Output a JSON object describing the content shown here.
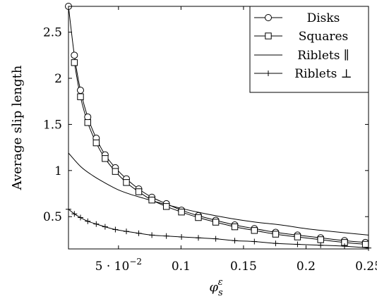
{
  "chart_data": {
    "type": "line",
    "title": "",
    "xlabel": "φ_s^ε",
    "ylabel": "Average slip length",
    "xlim": [
      0.01,
      0.25
    ],
    "ylim": [
      0.15,
      2.78
    ],
    "x_ticks": [
      {
        "value": 0.05,
        "label": "5 · 10",
        "sup": "−2"
      },
      {
        "value": 0.1,
        "label": "0.1"
      },
      {
        "value": 0.15,
        "label": "0.15"
      },
      {
        "value": 0.2,
        "label": "0.2"
      },
      {
        "value": 0.25,
        "label": "0.25"
      }
    ],
    "y_ticks": [
      {
        "value": 0.5,
        "label": "0.5"
      },
      {
        "value": 1,
        "label": "1"
      },
      {
        "value": 1.5,
        "label": "1.5"
      },
      {
        "value": 2,
        "label": "2"
      },
      {
        "value": 2.5,
        "label": "2.5"
      }
    ],
    "legend_position": "top-right",
    "series": [
      {
        "name": "Disks",
        "marker": "circle",
        "x": [
          0.01,
          0.0147,
          0.0196,
          0.0254,
          0.0322,
          0.0393,
          0.0475,
          0.0563,
          0.0662,
          0.0767,
          0.0883,
          0.1004,
          0.1139,
          0.1278,
          0.143,
          0.1587,
          0.1757,
          0.1932,
          0.2117,
          0.2308,
          0.2475
        ],
        "y": [
          2.78,
          2.25,
          1.87,
          1.58,
          1.35,
          1.17,
          1.03,
          0.91,
          0.8,
          0.71,
          0.64,
          0.57,
          0.51,
          0.46,
          0.41,
          0.37,
          0.33,
          0.3,
          0.27,
          0.24,
          0.22
        ]
      },
      {
        "name": "Squares",
        "marker": "square",
        "x": [
          0.0147,
          0.0196,
          0.0254,
          0.0322,
          0.0393,
          0.0475,
          0.0563,
          0.0662,
          0.0767,
          0.0883,
          0.1004,
          0.1139,
          0.1278,
          0.143,
          0.1587,
          0.1757,
          0.1932,
          0.2117,
          0.2308,
          0.2475
        ],
        "y": [
          2.17,
          1.8,
          1.52,
          1.3,
          1.13,
          0.99,
          0.87,
          0.77,
          0.68,
          0.61,
          0.55,
          0.49,
          0.44,
          0.39,
          0.35,
          0.31,
          0.28,
          0.25,
          0.22,
          0.2
        ]
      },
      {
        "name": "Riblets ∥",
        "marker": "none",
        "x": [
          0.01,
          0.02,
          0.03,
          0.04,
          0.05,
          0.06,
          0.07,
          0.08,
          0.1,
          0.12,
          0.14,
          0.16,
          0.18,
          0.2,
          0.22,
          0.25
        ],
        "y": [
          1.19,
          1.04,
          0.94,
          0.86,
          0.79,
          0.74,
          0.7,
          0.66,
          0.59,
          0.53,
          0.48,
          0.44,
          0.41,
          0.37,
          0.34,
          0.3
        ]
      },
      {
        "name": "Riblets ⊥",
        "marker": "plus",
        "x": [
          0.01,
          0.0147,
          0.0196,
          0.0254,
          0.0322,
          0.0393,
          0.0475,
          0.0563,
          0.0662,
          0.0767,
          0.0883,
          0.1004,
          0.1139,
          0.1278,
          0.143,
          0.1587,
          0.1757,
          0.1932,
          0.2117,
          0.2308,
          0.25
        ],
        "y": [
          0.58,
          0.53,
          0.49,
          0.45,
          0.42,
          0.39,
          0.36,
          0.34,
          0.32,
          0.3,
          0.29,
          0.28,
          0.27,
          0.26,
          0.24,
          0.23,
          0.21,
          0.2,
          0.19,
          0.18,
          0.16
        ]
      }
    ]
  }
}
